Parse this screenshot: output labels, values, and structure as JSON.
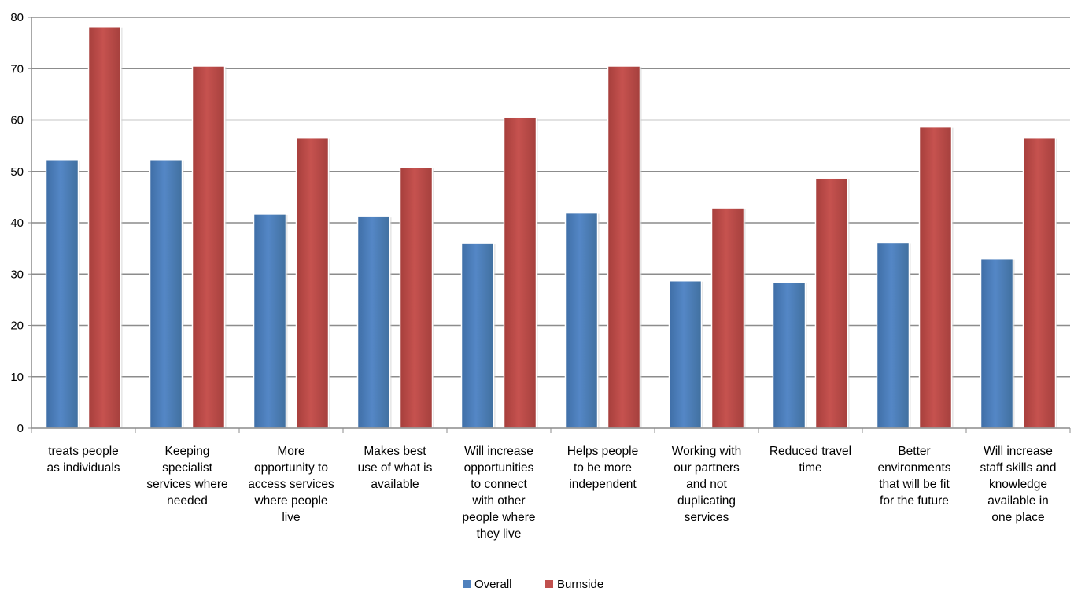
{
  "chart_data": {
    "type": "bar",
    "title": "",
    "xlabel": "",
    "ylabel": "",
    "ylim": [
      0,
      80
    ],
    "yticks": [
      0,
      10,
      20,
      30,
      40,
      50,
      60,
      70,
      80
    ],
    "grid": true,
    "legend_position": "bottom",
    "categories": [
      "treats people as individuals",
      "Keeping specialist services where needed",
      "More opportunity to access services where people live",
      "Makes best use of what is available",
      "Will increase opportunities to connect with other people where they live",
      "Helps people to be more independent",
      "Working with our partners and not duplicating services",
      "Reduced travel time",
      "Better environments that will be fit for the future",
      "Will increase staff skills and knowledge available in one place"
    ],
    "category_lines": [
      [
        "treats people",
        "as individuals"
      ],
      [
        "Keeping",
        "specialist",
        "services where",
        "needed"
      ],
      [
        "More",
        "opportunity to",
        "access services",
        "where people",
        "live"
      ],
      [
        "Makes best",
        "use of what is",
        "available"
      ],
      [
        "Will increase",
        "opportunities",
        "to connect",
        "with other",
        "people where",
        "they live"
      ],
      [
        "Helps people",
        "to be more",
        "independent"
      ],
      [
        "Working with",
        "our partners",
        "and not",
        "duplicating",
        "services"
      ],
      [
        "Reduced travel",
        "time"
      ],
      [
        "Better",
        "environments",
        "that will be fit",
        "for the future"
      ],
      [
        "Will increase",
        "staff skills and",
        "knowledge",
        "available in",
        "one place"
      ]
    ],
    "series": [
      {
        "name": "Overall",
        "color": "#4F81BD",
        "values": [
          52.3,
          52.3,
          41.7,
          41.2,
          36.0,
          41.9,
          28.7,
          28.4,
          36.1,
          33.0
        ]
      },
      {
        "name": "Burnside",
        "color": "#C0504D",
        "values": [
          78.2,
          70.5,
          56.6,
          50.7,
          60.5,
          70.5,
          42.9,
          48.7,
          58.6,
          56.6
        ]
      }
    ]
  }
}
